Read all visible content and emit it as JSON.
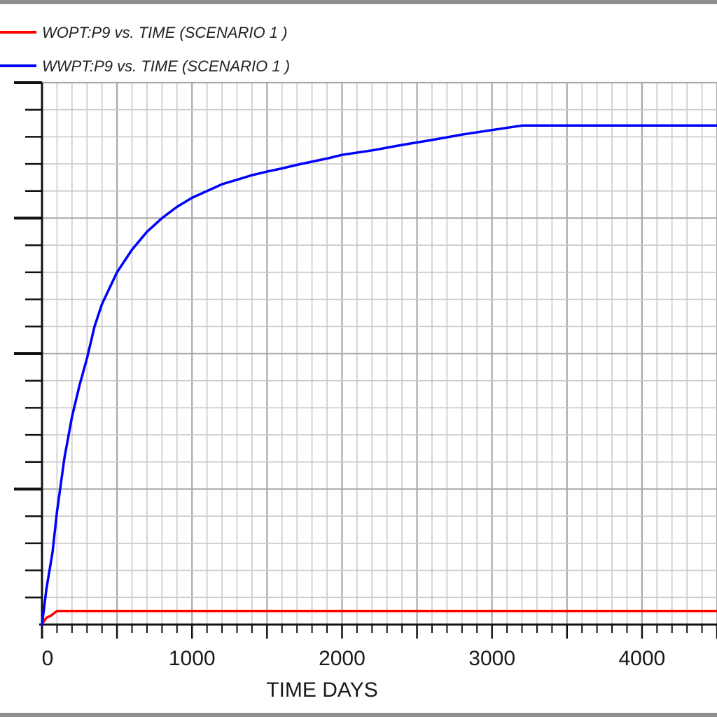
{
  "chart_data": {
    "type": "line",
    "xlabel": "TIME    DAYS",
    "ylabel": "",
    "xlim": [
      0,
      4500
    ],
    "x_ticks": [
      0,
      1000,
      2000,
      3000,
      4000
    ],
    "grid": true,
    "legend_position": "top-left",
    "series": [
      {
        "name": "WOPT:P9  vs.  TIME (SCENARIO 1 )",
        "color": "#ff0000",
        "x": [
          0,
          30,
          60,
          100,
          150,
          300,
          600,
          1000,
          2000,
          3000,
          4000,
          4500
        ],
        "y": [
          0.2,
          1.5,
          2.0,
          3.0,
          3.0,
          3.0,
          3.0,
          3.0,
          3.0,
          3.0,
          3.0,
          3.0
        ]
      },
      {
        "name": "WWPT:P9  vs.  TIME (SCENARIO 1 )",
        "color": "#0000ff",
        "x": [
          0,
          30,
          70,
          100,
          150,
          200,
          250,
          300,
          350,
          400,
          500,
          600,
          700,
          800,
          900,
          1000,
          1100,
          1200,
          1300,
          1400,
          1500,
          1600,
          1700,
          1800,
          1900,
          2000,
          2200,
          2400,
          2600,
          2800,
          3000,
          3200,
          3500,
          4000,
          4500
        ],
        "y": [
          0,
          8,
          16,
          25,
          37,
          46,
          53,
          59,
          66,
          71,
          78,
          83,
          87,
          90,
          92.5,
          94.5,
          96,
          97.5,
          98.5,
          99.5,
          100.3,
          101,
          101.8,
          102.5,
          103.2,
          104,
          105,
          106.2,
          107.3,
          108.5,
          109.5,
          110.5,
          110.5,
          110.5,
          110.5
        ]
      }
    ]
  }
}
